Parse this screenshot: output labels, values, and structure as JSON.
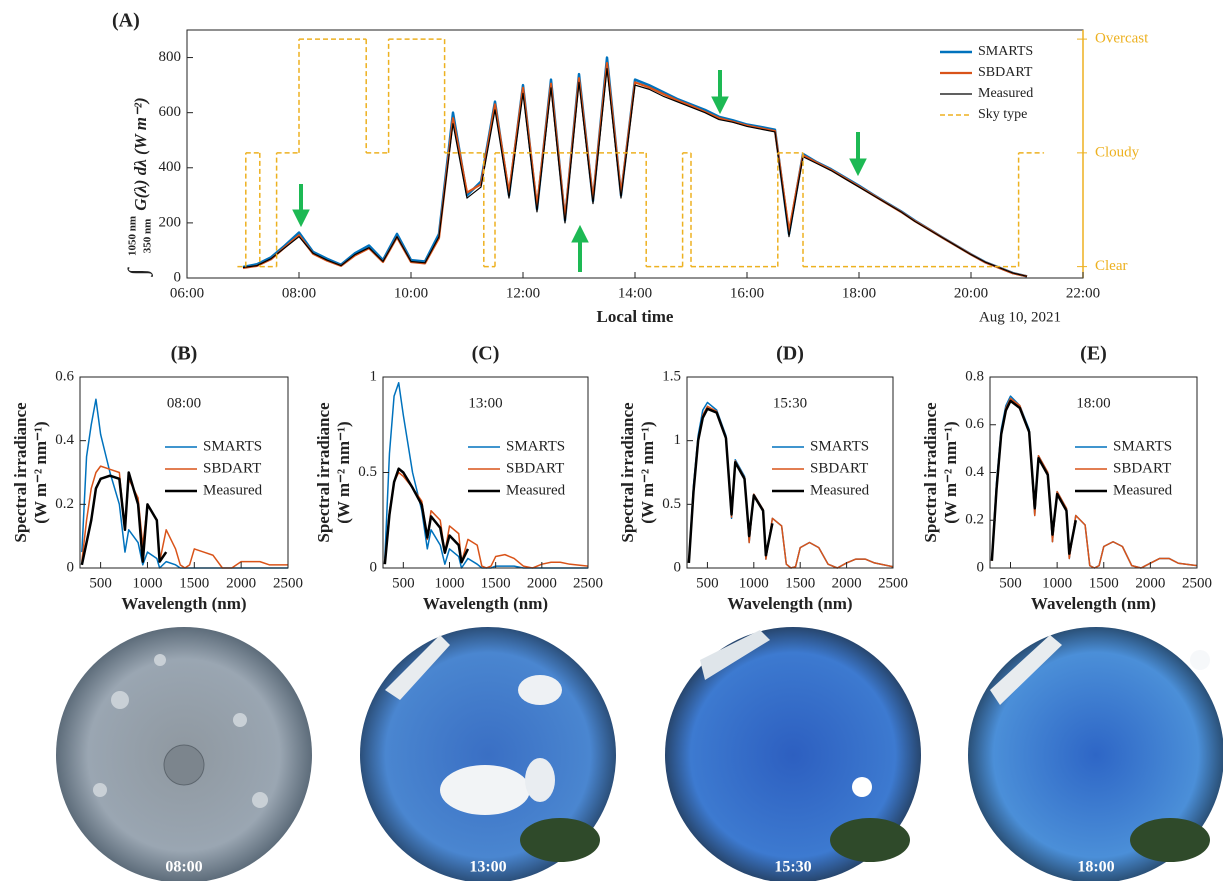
{
  "chart_data": [
    {
      "type": "line",
      "title": "(A)",
      "x_label": "Local time",
      "y_label": "G(λ) dλ (W m⁻²)",
      "y_label_symbol": "∫",
      "y_label_upper": "1050 nm",
      "y_label_lower": "350 nm",
      "note": "Aug 10, 2021",
      "xlim": [
        6,
        22
      ],
      "xticks": [
        {
          "value": 6,
          "label": "06:00"
        },
        {
          "value": 8,
          "label": "08:00"
        },
        {
          "value": 10,
          "label": "10:00"
        },
        {
          "value": 12,
          "label": "12:00"
        },
        {
          "value": 14,
          "label": "14:00"
        },
        {
          "value": 16,
          "label": "16:00"
        },
        {
          "value": 18,
          "label": "18:00"
        },
        {
          "value": 20,
          "label": "20:00"
        },
        {
          "value": 22,
          "label": "22:00"
        }
      ],
      "ylim": [
        0,
        900
      ],
      "yticks": [
        0,
        200,
        400,
        600,
        800
      ],
      "y2lim": [
        0.9,
        3.08
      ],
      "y2ticks": [
        {
          "value": 1,
          "label": "Clear"
        },
        {
          "value": 2,
          "label": "Cloudy"
        },
        {
          "value": 3,
          "label": "Overcast"
        }
      ],
      "y2_color": "#edb120",
      "x": [
        7,
        7.25,
        7.5,
        7.75,
        8,
        8.25,
        8.5,
        8.75,
        9,
        9.25,
        9.5,
        9.75,
        10,
        10.25,
        10.5,
        10.75,
        11,
        11.25,
        11.5,
        11.75,
        12,
        12.25,
        12.5,
        12.75,
        13,
        13.25,
        13.5,
        13.75,
        14,
        14.25,
        14.5,
        14.75,
        15,
        15.25,
        15.5,
        15.75,
        16,
        16.25,
        16.5,
        16.75,
        17,
        17.25,
        17.5,
        17.75,
        18,
        18.25,
        18.5,
        18.75,
        19,
        19.25,
        19.5,
        19.75,
        20,
        20.25,
        20.5,
        20.75,
        21
      ],
      "series": [
        {
          "name": "SMARTS",
          "color": "#0072bd",
          "width": 2.5,
          "values": [
            40,
            50,
            75,
            118,
            165,
            95,
            70,
            48,
            90,
            118,
            65,
            160,
            65,
            60,
            160,
            600,
            300,
            350,
            640,
            300,
            700,
            250,
            720,
            210,
            740,
            280,
            800,
            300,
            720,
            700,
            675,
            650,
            630,
            610,
            585,
            572,
            557,
            548,
            538,
            160,
            450,
            420,
            395,
            365,
            335,
            303,
            272,
            242,
            208,
            177,
            146,
            116,
            86,
            58,
            38,
            18,
            6
          ]
        },
        {
          "name": "SBDART",
          "color": "#d95319",
          "width": 2.2,
          "values": [
            36,
            44,
            68,
            112,
            155,
            88,
            63,
            44,
            82,
            108,
            58,
            148,
            58,
            53,
            145,
            580,
            310,
            340,
            630,
            310,
            690,
            260,
            705,
            215,
            725,
            285,
            780,
            305,
            710,
            692,
            668,
            645,
            625,
            603,
            580,
            567,
            553,
            543,
            533,
            170,
            445,
            418,
            392,
            362,
            332,
            301,
            270,
            240,
            206,
            176,
            145,
            115,
            85,
            57,
            37,
            17,
            6
          ]
        },
        {
          "name": "Measured",
          "color": "#000000",
          "width": 1.2,
          "values": [
            38,
            45,
            70,
            110,
            150,
            90,
            65,
            45,
            85,
            110,
            60,
            150,
            60,
            55,
            150,
            560,
            290,
            330,
            610,
            290,
            670,
            240,
            690,
            200,
            710,
            270,
            760,
            290,
            700,
            685,
            660,
            640,
            620,
            600,
            575,
            565,
            550,
            540,
            530,
            150,
            440,
            415,
            390,
            360,
            330,
            300,
            270,
            240,
            205,
            175,
            145,
            115,
            85,
            58,
            38,
            18,
            6
          ]
        },
        {
          "name": "Sky type",
          "color": "#edb120",
          "axis": "y2",
          "dashed": true,
          "step": true,
          "x": [
            6.9,
            7.05,
            7.3,
            7.6,
            8,
            9.2,
            9.6,
            10.6,
            11.3,
            11.5,
            14.2,
            14.85,
            15,
            16.55,
            17,
            20.85,
            21.3
          ],
          "values": [
            1,
            2,
            1,
            2,
            3,
            2,
            3,
            2,
            1,
            2,
            1,
            2,
            1,
            2,
            1,
            2,
            2
          ]
        }
      ]
    },
    {
      "type": "line",
      "title": "(B)",
      "annotation": "08:00",
      "x_label": "Wavelength (nm)",
      "y_label": "Spectral irradiance",
      "y_label_units": "(W m⁻² nm⁻¹)",
      "xlim": [
        280,
        2500
      ],
      "xticks": [
        500,
        1000,
        1500,
        2000,
        2500
      ],
      "ylim": [
        0,
        0.6
      ],
      "yticks": [
        0,
        0.2,
        0.4,
        0.6
      ],
      "x": [
        300,
        350,
        400,
        450,
        500,
        600,
        700,
        760,
        800,
        900,
        950,
        1000,
        1100,
        1130,
        1200,
        1300,
        1350,
        1400,
        1450,
        1500,
        1600,
        1700,
        1800,
        1900,
        2000,
        2100,
        2200,
        2300,
        2500
      ],
      "series": [
        {
          "name": "SMARTS",
          "color": "#0072bd",
          "width": 1.5,
          "values": [
            0.05,
            0.35,
            0.45,
            0.53,
            0.42,
            0.3,
            0.2,
            0.05,
            0.12,
            0.08,
            0.01,
            0.05,
            0.03,
            0,
            0.02,
            0.01,
            0,
            0,
            0,
            0,
            0,
            0,
            0,
            0,
            0,
            0,
            0,
            0,
            0
          ]
        },
        {
          "name": "SBDART",
          "color": "#d95319",
          "width": 1.5,
          "values": [
            0.02,
            0.15,
            0.25,
            0.3,
            0.32,
            0.31,
            0.3,
            0.12,
            0.28,
            0.22,
            0.07,
            0.2,
            0.15,
            0.02,
            0.12,
            0.06,
            0.01,
            0,
            0.01,
            0.06,
            0.05,
            0.04,
            0,
            0,
            0.02,
            0.02,
            0.02,
            0.01,
            0.01
          ]
        },
        {
          "name": "Measured",
          "color": "#000000",
          "width": 2.5,
          "values": [
            0.01,
            0.08,
            0.15,
            0.25,
            0.28,
            0.29,
            0.28,
            0.12,
            0.3,
            0.2,
            0.02,
            0.2,
            0.15,
            0.02,
            0.05,
            null,
            null,
            null,
            null,
            null,
            null,
            null,
            null,
            null,
            null,
            null,
            null,
            null,
            null
          ]
        }
      ]
    },
    {
      "type": "line",
      "title": "(C)",
      "annotation": "13:00",
      "x_label": "Wavelength (nm)",
      "y_label": "Spectral irradiance",
      "y_label_units": "(W m⁻² nm⁻¹)",
      "xlim": [
        280,
        2500
      ],
      "xticks": [
        500,
        1000,
        1500,
        2000,
        2500
      ],
      "ylim": [
        0,
        1
      ],
      "yticks": [
        0,
        0.5,
        1
      ],
      "x": [
        300,
        350,
        400,
        450,
        500,
        600,
        700,
        760,
        800,
        900,
        950,
        1000,
        1100,
        1130,
        1200,
        1300,
        1350,
        1400,
        1450,
        1500,
        1600,
        1700,
        1800,
        1900,
        2000,
        2100,
        2200,
        2300,
        2500
      ],
      "series": [
        {
          "name": "SMARTS",
          "color": "#0072bd",
          "width": 1.5,
          "values": [
            0.05,
            0.6,
            0.9,
            0.97,
            0.8,
            0.5,
            0.3,
            0.1,
            0.2,
            0.12,
            0.02,
            0.1,
            0.06,
            0,
            0.05,
            0.02,
            0,
            0,
            0,
            0.01,
            0.01,
            0.01,
            0,
            0,
            0,
            0,
            0,
            0,
            0
          ]
        },
        {
          "name": "SBDART",
          "color": "#d95319",
          "width": 1.5,
          "values": [
            0.03,
            0.3,
            0.45,
            0.5,
            0.48,
            0.42,
            0.35,
            0.15,
            0.3,
            0.25,
            0.08,
            0.22,
            0.18,
            0.03,
            0.15,
            0.12,
            0.01,
            0,
            0.01,
            0.06,
            0.07,
            0.05,
            0.01,
            0,
            0.02,
            0.03,
            0.03,
            0.02,
            0.01
          ]
        },
        {
          "name": "Measured",
          "color": "#000000",
          "width": 2.5,
          "values": [
            0.02,
            0.28,
            0.45,
            0.52,
            0.5,
            0.42,
            0.33,
            0.16,
            0.27,
            0.21,
            0.08,
            0.17,
            0.12,
            0.03,
            0.1,
            null,
            null,
            null,
            null,
            null,
            null,
            null,
            null,
            null,
            null,
            null,
            null,
            null,
            null
          ]
        }
      ]
    },
    {
      "type": "line",
      "title": "(D)",
      "annotation": "15:30",
      "x_label": "Wavelength (nm)",
      "y_label": "Spectral irradiance",
      "y_label_units": "(W m⁻² nm⁻¹)",
      "xlim": [
        280,
        2500
      ],
      "xticks": [
        500,
        1000,
        1500,
        2000,
        2500
      ],
      "ylim": [
        0,
        1.5
      ],
      "yticks": [
        0,
        0.5,
        1,
        1.5
      ],
      "x": [
        300,
        350,
        400,
        450,
        500,
        600,
        700,
        760,
        800,
        900,
        950,
        1000,
        1100,
        1130,
        1200,
        1300,
        1350,
        1400,
        1450,
        1500,
        1600,
        1700,
        1800,
        1900,
        2000,
        2100,
        2200,
        2300,
        2500
      ],
      "series": [
        {
          "name": "SMARTS",
          "color": "#0072bd",
          "width": 1.5,
          "values": [
            0.06,
            0.65,
            1.04,
            1.24,
            1.3,
            1.24,
            1.04,
            0.39,
            0.85,
            0.72,
            0.2,
            0.58,
            0.46,
            0.07,
            0.39,
            0.33,
            0.03,
            0,
            0.01,
            0.16,
            0.2,
            0.16,
            0.03,
            0,
            0.04,
            0.07,
            0.07,
            0.04,
            0.01
          ]
        },
        {
          "name": "SBDART",
          "color": "#d95319",
          "width": 1.5,
          "values": [
            0.05,
            0.62,
            1.0,
            1.2,
            1.27,
            1.23,
            1.03,
            0.4,
            0.84,
            0.71,
            0.2,
            0.58,
            0.46,
            0.07,
            0.39,
            0.33,
            0.03,
            0,
            0.01,
            0.16,
            0.2,
            0.16,
            0.03,
            0,
            0.04,
            0.07,
            0.07,
            0.04,
            0.01
          ]
        },
        {
          "name": "Measured",
          "color": "#000000",
          "width": 2.5,
          "values": [
            0.04,
            0.6,
            1.0,
            1.18,
            1.25,
            1.22,
            1.02,
            0.42,
            0.83,
            0.7,
            0.25,
            0.57,
            0.45,
            0.1,
            0.35,
            null,
            null,
            null,
            null,
            null,
            null,
            null,
            null,
            null,
            null,
            null,
            null,
            null,
            null
          ]
        }
      ]
    },
    {
      "type": "line",
      "title": "(E)",
      "annotation": "18:00",
      "x_label": "Wavelength (nm)",
      "y_label": "Spectral irradiance",
      "y_label_units": "(W m⁻² nm⁻¹)",
      "xlim": [
        280,
        2500
      ],
      "xticks": [
        500,
        1000,
        1500,
        2000,
        2500
      ],
      "ylim": [
        0,
        0.8
      ],
      "yticks": [
        0,
        0.2,
        0.4,
        0.6,
        0.8
      ],
      "x": [
        300,
        350,
        400,
        450,
        500,
        600,
        700,
        760,
        800,
        900,
        950,
        1000,
        1100,
        1130,
        1200,
        1300,
        1350,
        1400,
        1450,
        1500,
        1600,
        1700,
        1800,
        1900,
        2000,
        2100,
        2200,
        2300,
        2500
      ],
      "series": [
        {
          "name": "SMARTS",
          "color": "#0072bd",
          "width": 1.5,
          "values": [
            0.04,
            0.36,
            0.58,
            0.68,
            0.72,
            0.68,
            0.58,
            0.22,
            0.47,
            0.4,
            0.11,
            0.32,
            0.25,
            0.04,
            0.22,
            0.18,
            0.01,
            0,
            0.01,
            0.09,
            0.11,
            0.09,
            0.01,
            0,
            0.02,
            0.04,
            0.04,
            0.02,
            0.01
          ]
        },
        {
          "name": "SBDART",
          "color": "#d95319",
          "width": 1.5,
          "values": [
            0.03,
            0.34,
            0.56,
            0.67,
            0.71,
            0.68,
            0.57,
            0.22,
            0.47,
            0.4,
            0.11,
            0.32,
            0.25,
            0.04,
            0.22,
            0.18,
            0.01,
            0,
            0.01,
            0.09,
            0.11,
            0.09,
            0.01,
            0,
            0.02,
            0.04,
            0.04,
            0.02,
            0.01
          ]
        },
        {
          "name": "Measured",
          "color": "#000000",
          "width": 2.5,
          "values": [
            0.03,
            0.33,
            0.56,
            0.66,
            0.7,
            0.67,
            0.57,
            0.25,
            0.46,
            0.39,
            0.14,
            0.31,
            0.24,
            0.06,
            0.2,
            null,
            null,
            null,
            null,
            null,
            null,
            null,
            null,
            null,
            null,
            null,
            null,
            null,
            null
          ]
        }
      ]
    }
  ],
  "images": [
    {
      "caption": "08:00"
    },
    {
      "caption": "13:00"
    },
    {
      "caption": "15:30"
    },
    {
      "caption": "18:00"
    }
  ]
}
